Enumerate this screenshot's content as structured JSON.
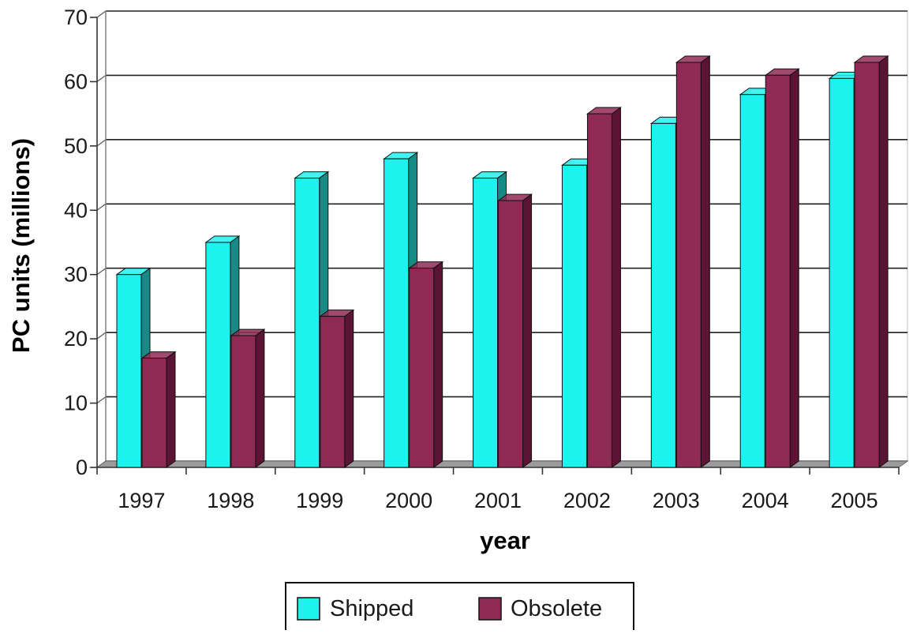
{
  "chart_data": {
    "type": "bar",
    "title": "",
    "xlabel": "year",
    "ylabel": "PC units (millions)",
    "ylim": [
      0,
      70
    ],
    "yticks": [
      0,
      10,
      20,
      30,
      40,
      50,
      60,
      70
    ],
    "grid": true,
    "style": "3d-clustered-columns",
    "legend": "bottom",
    "categories": [
      "1997",
      "1998",
      "1999",
      "2000",
      "2001",
      "2002",
      "2003",
      "2004",
      "2005"
    ],
    "series": [
      {
        "name": "Shipped",
        "color": "#1ef2ee",
        "side_color": "#178a86",
        "values": [
          30,
          35,
          45,
          48,
          45,
          47,
          53.5,
          58,
          60.5
        ]
      },
      {
        "name": "Obsolete",
        "color": "#8f2a55",
        "side_color": "#5b1433",
        "values": [
          17,
          20.5,
          23.5,
          31,
          41.5,
          55,
          63,
          61,
          63
        ]
      }
    ]
  }
}
